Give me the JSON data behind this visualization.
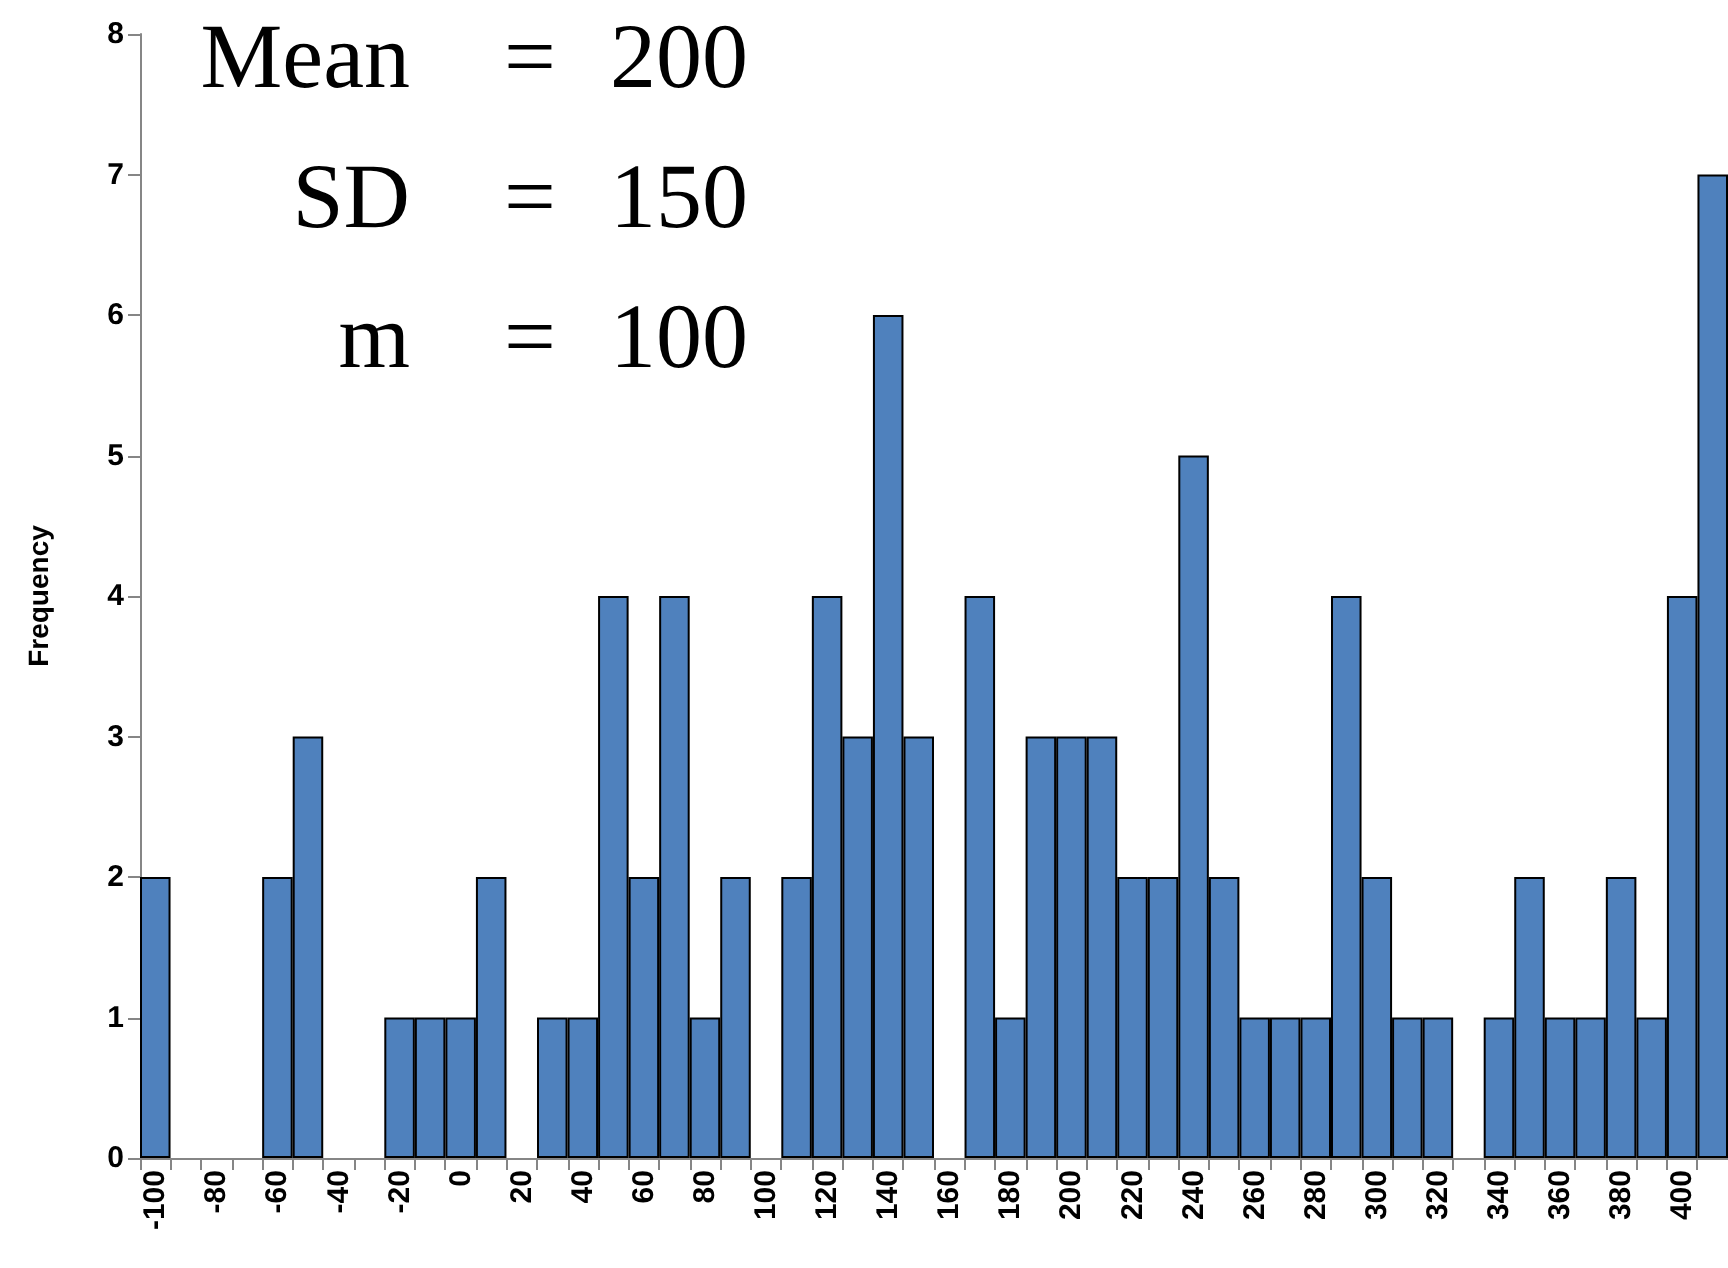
{
  "chart_data": {
    "type": "bar",
    "categories": [
      "-100",
      null,
      "-80",
      null,
      "-60",
      null,
      "-40",
      null,
      "-20",
      null,
      "0",
      null,
      "20",
      null,
      "40",
      null,
      "60",
      null,
      "80",
      null,
      "100",
      null,
      "120",
      null,
      "140",
      null,
      "160",
      null,
      "180",
      null,
      "200",
      null,
      "220",
      null,
      "240",
      null,
      "260",
      null,
      "280",
      null,
      "300",
      null,
      "320",
      null,
      "340",
      null,
      "360",
      null,
      "380",
      null,
      "400",
      null
    ],
    "values": [
      2,
      0,
      0,
      0,
      2,
      3,
      0,
      0,
      1,
      1,
      1,
      2,
      0,
      1,
      1,
      4,
      2,
      4,
      1,
      2,
      0,
      2,
      4,
      3,
      6,
      3,
      0,
      4,
      1,
      3,
      3,
      3,
      2,
      2,
      5,
      2,
      1,
      1,
      1,
      4,
      2,
      1,
      1,
      0,
      1,
      2,
      1,
      1,
      2,
      1,
      4,
      7
    ],
    "color": "#4f81bd",
    "ylabel": "Frequency",
    "ylim": [
      0,
      8
    ],
    "yticks": [
      0,
      1,
      2,
      3,
      4,
      5,
      6,
      7,
      8
    ],
    "annotations": [
      "Mean = 200",
      "SD = 150",
      "m = 100"
    ],
    "grid": false
  }
}
